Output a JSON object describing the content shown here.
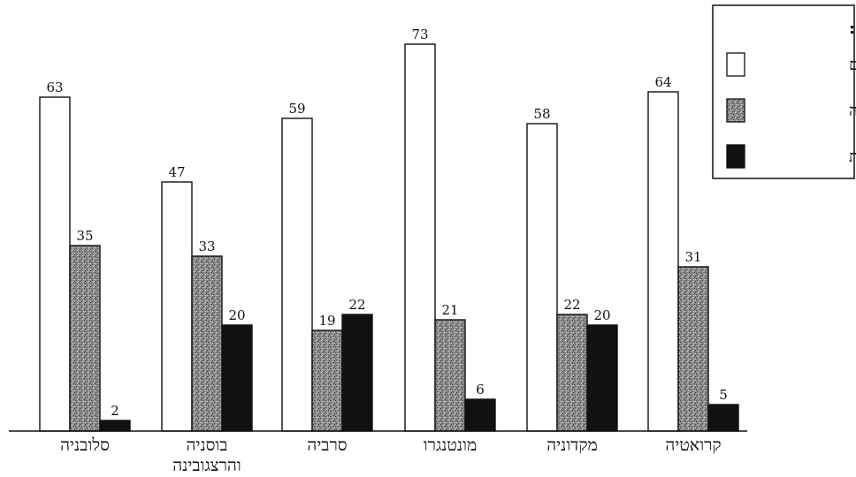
{
  "chart_data": {
    "type": "bar",
    "direction": "rtl",
    "categories": [
      "קרואטיה",
      "מקדוניה",
      "מונטנגרו",
      "סרביה",
      "בוסניה והרצגובינה",
      "סלובניה"
    ],
    "category_lines": [
      [
        "קרואטיה"
      ],
      [
        "מקדוניה"
      ],
      [
        "מונטנגרו"
      ],
      [
        "סרביה"
      ],
      [
        "בוסניה",
        "והרצגובינה"
      ],
      [
        "סלובניה"
      ]
    ],
    "series": [
      {
        "name": "שירותים",
        "values": [
          64,
          58,
          73,
          59,
          47,
          63
        ],
        "color": "#ffffff",
        "fill_style": "white"
      },
      {
        "name": "תעשייה",
        "values": [
          31,
          22,
          21,
          19,
          33,
          35
        ],
        "color": "#777777",
        "fill_style": "speckled gray"
      },
      {
        "name": "חקלאות",
        "values": [
          5,
          20,
          6,
          22,
          20,
          2
        ],
        "color": "#111111",
        "fill_style": "black"
      }
    ],
    "ylim": [
      0,
      80
    ],
    "grid": false,
    "legend": {
      "title": "מקרא:",
      "position": "top-right"
    },
    "title": "",
    "xlabel": "",
    "ylabel": ""
  }
}
